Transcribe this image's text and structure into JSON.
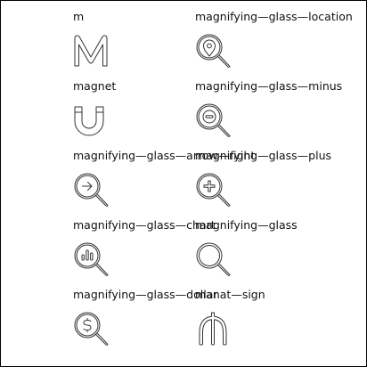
{
  "icons": [
    {
      "label": "m",
      "icon": "m-icon"
    },
    {
      "label": "magnifying—glass—location",
      "icon": "magnifying-glass-location-icon"
    },
    {
      "label": "magnet",
      "icon": "magnet-icon"
    },
    {
      "label": "magnifying—glass—minus",
      "icon": "magnifying-glass-minus-icon"
    },
    {
      "label": "magnifying—glass—arrow—right",
      "icon": "magnifying-glass-arrow-right-icon"
    },
    {
      "label": "magnifying—glass—plus",
      "icon": "magnifying-glass-plus-icon"
    },
    {
      "label": "magnifying—glass—chart",
      "icon": "magnifying-glass-chart-icon"
    },
    {
      "label": "magnifying—glass",
      "icon": "magnifying-glass-icon"
    },
    {
      "label": "magnifying—glass—dollar",
      "icon": "magnifying-glass-dollar-icon"
    },
    {
      "label": "manat—sign",
      "icon": "manat-sign-icon"
    }
  ],
  "stroke_color": "#333333"
}
